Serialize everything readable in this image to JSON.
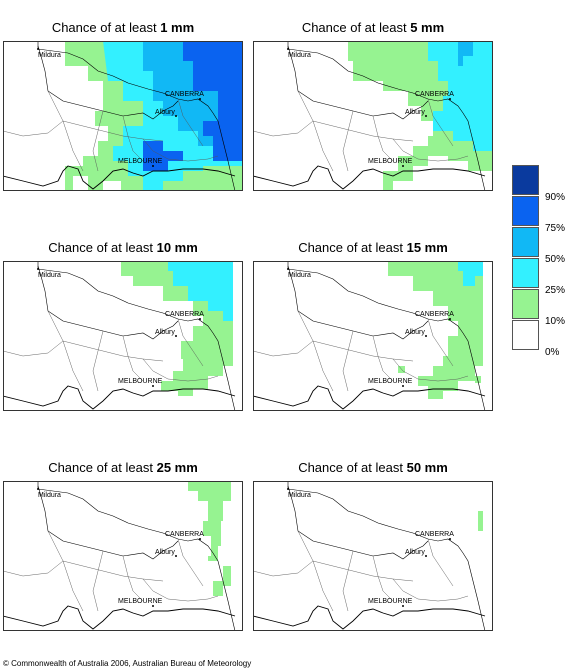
{
  "panels": [
    {
      "title_prefix": "Chance of at least ",
      "threshold": "1 mm"
    },
    {
      "title_prefix": "Chance of at least ",
      "threshold": "5 mm"
    },
    {
      "title_prefix": "Chance of at least ",
      "threshold": "10 mm"
    },
    {
      "title_prefix": "Chance of at least ",
      "threshold": "15 mm"
    },
    {
      "title_prefix": "Chance of at least ",
      "threshold": "25 mm"
    },
    {
      "title_prefix": "Chance of at least ",
      "threshold": "50 mm"
    }
  ],
  "places": {
    "mildura": "Mildura",
    "canberra": "CANBERRA",
    "albury": "Albury",
    "melbourne": "MELBOURNE"
  },
  "legend": {
    "items": [
      {
        "label": "90%",
        "color": "#0a3a9e"
      },
      {
        "label": "75%",
        "color": "#0a63f0"
      },
      {
        "label": "50%",
        "color": "#11b8f5"
      },
      {
        "label": "25%",
        "color": "#33f0ff"
      },
      {
        "label": "10%",
        "color": "#96f391"
      },
      {
        "label": "0%",
        "color": "#ffffff"
      }
    ]
  },
  "copyright": "© Commonwealth of Australia 2006, Australian Bureau of Meteorology"
}
